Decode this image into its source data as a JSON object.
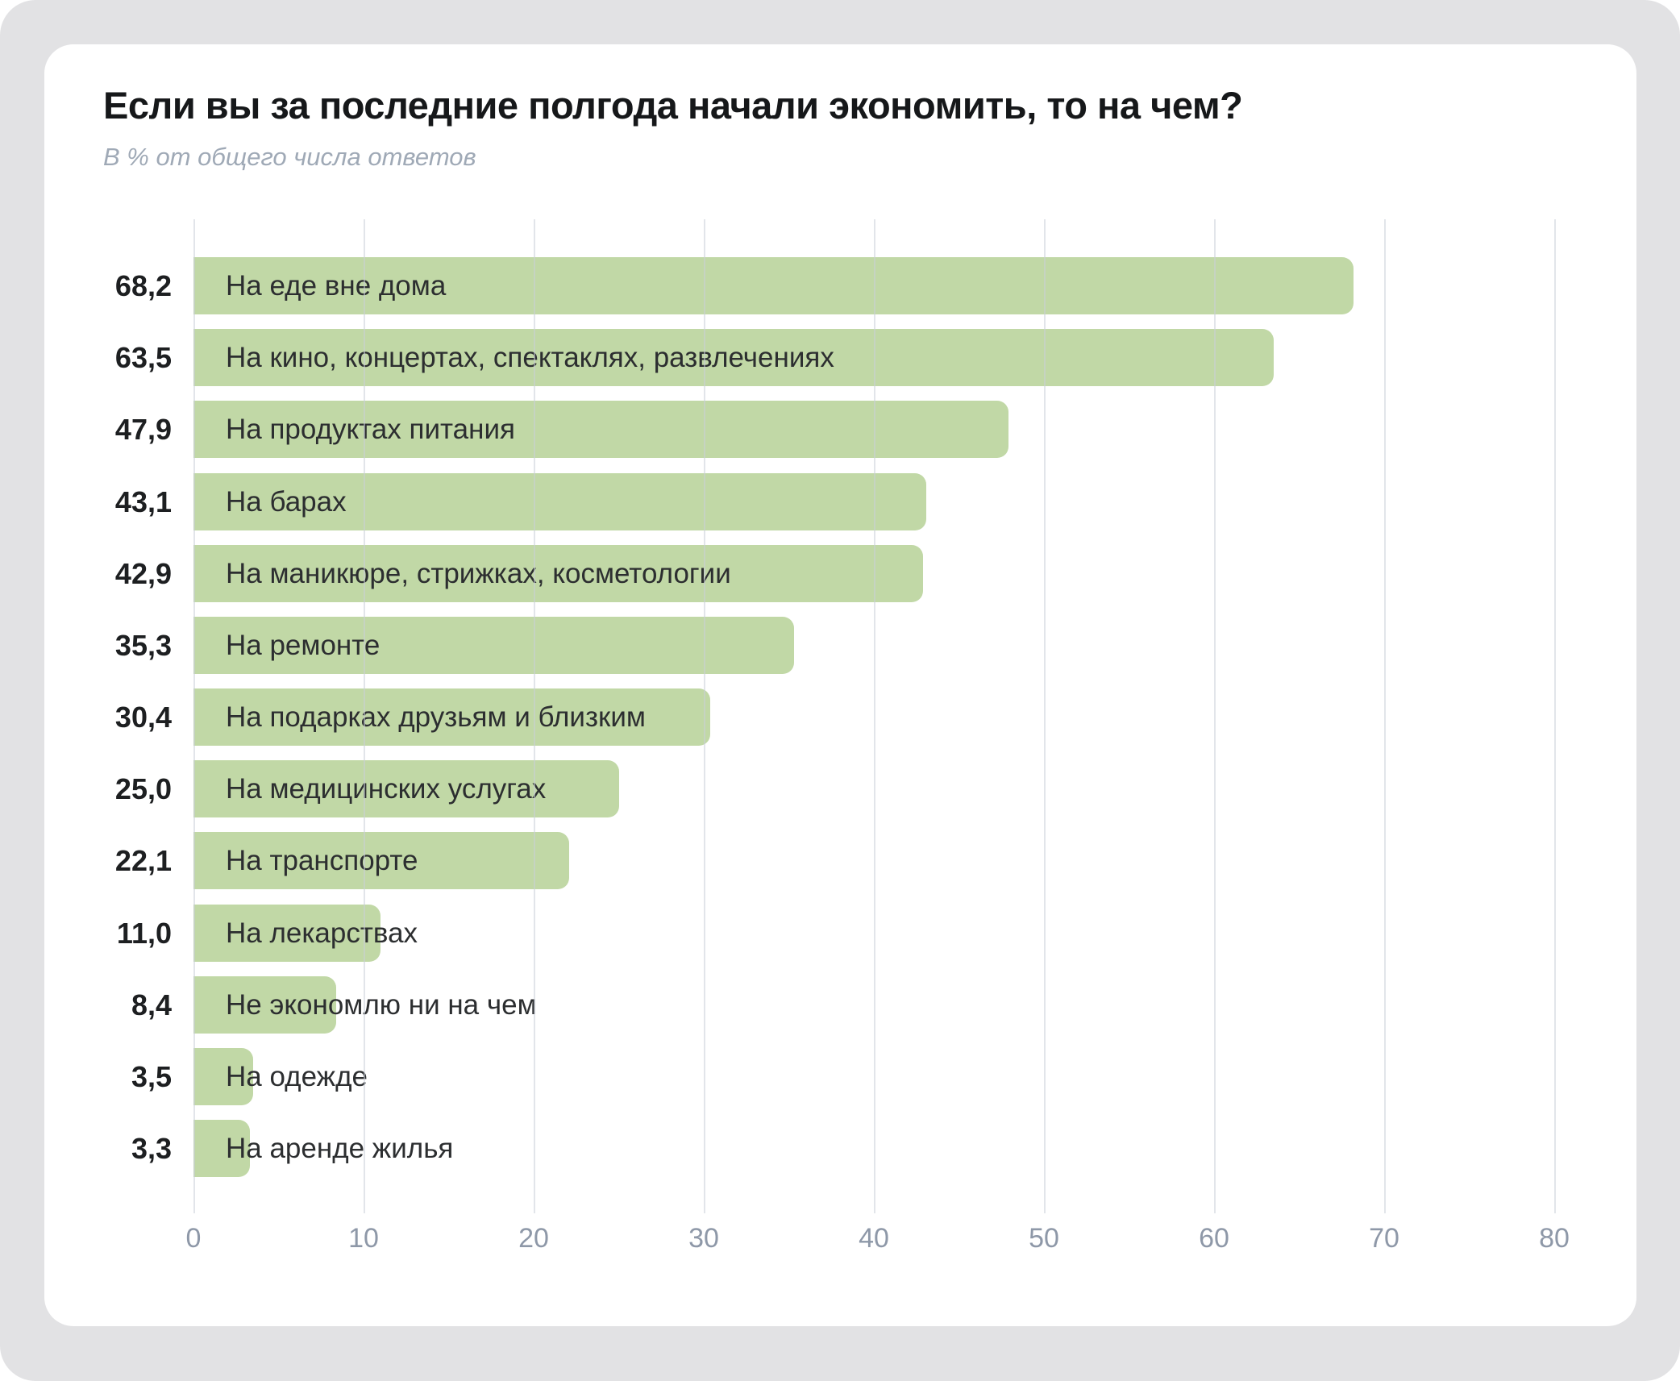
{
  "header": {
    "title": "Если вы за последние полгода начали экономить, то на чем?",
    "subtitle": "В % от общего числа ответов"
  },
  "chart_data": {
    "type": "bar",
    "orientation": "horizontal",
    "title": "Если вы за последние полгода начали экономить, то на чем?",
    "subtitle": "В % от общего числа ответов",
    "categories": [
      "На еде вне дома",
      "На кино, концертах, спектаклях, развлечениях",
      "На продуктах питания",
      "На барах",
      "На маникюре, стрижках, косметологии",
      "На ремонте",
      "На подарках друзьям и близким",
      "На медицинских услугах",
      "На транспорте",
      "На лекарствах",
      "Не экономлю ни на чем",
      "На одежде",
      "На аренде жилья"
    ],
    "values": [
      68.2,
      63.5,
      47.9,
      43.1,
      42.9,
      35.3,
      30.4,
      25.0,
      22.1,
      11.0,
      8.4,
      3.5,
      3.3
    ],
    "value_labels": [
      "68,2",
      "63,5",
      "47,9",
      "43,1",
      "42,9",
      "35,3",
      "30,4",
      "25,0",
      "22,1",
      "11,0",
      "8,4",
      "3,5",
      "3,3"
    ],
    "x_ticks": [
      0,
      10,
      20,
      30,
      40,
      50,
      60,
      70,
      80
    ],
    "xlim": [
      0,
      82.5
    ],
    "grid": true,
    "legend": "none",
    "bar_color": "#c1d8a6"
  },
  "colors": {
    "background_outer": "#e2e2e4",
    "card": "#ffffff",
    "bar": "#c1d8a6",
    "title_text": "#16181a",
    "subtitle_text": "#9fa9b6",
    "tick_text": "#8e98a8",
    "gridline": "#e2e4e9"
  }
}
